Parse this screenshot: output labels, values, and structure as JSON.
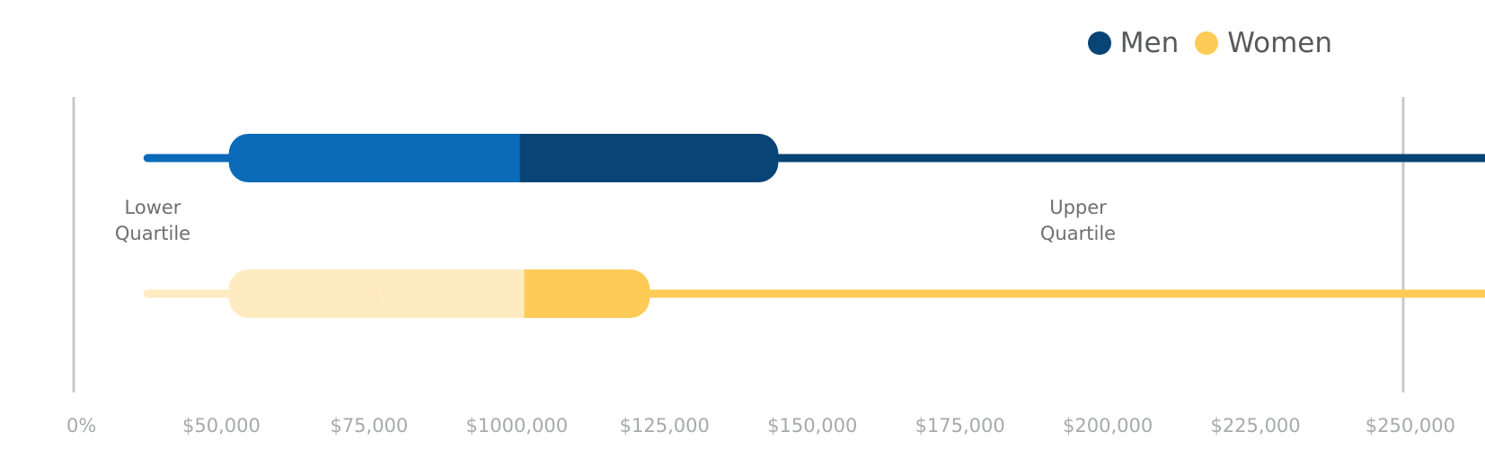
{
  "legend": {
    "men": "Men",
    "women": "Women"
  },
  "annotations": {
    "lower_quartile": "Lower\nQuartile",
    "upper_quartile": "Upper\nQuartile"
  },
  "chart_data": {
    "type": "box",
    "categories": [
      "Men",
      "Women"
    ],
    "x_tick_labels": [
      "0%",
      "$50,000",
      "$75,000",
      "$1000,000",
      "$125,000",
      "$150,000",
      "$175,000",
      "$200,000",
      "$225,000",
      "$250,000"
    ],
    "series": [
      {
        "name": "Men",
        "whisker_low": 0.5,
        "q1": 1.05,
        "median": 3.02,
        "q3": 4.77,
        "whisker_high": 9.95,
        "color_light": "#0b6bb8",
        "color_dark": "#084475"
      },
      {
        "name": "Women",
        "whisker_low": 0.5,
        "q1": 1.05,
        "median": 3.05,
        "q3": 3.9,
        "whisker_high": 9.97,
        "color_light": "#feebc2",
        "color_dark": "#fecb57"
      }
    ],
    "colors": {
      "men": "#084475",
      "women": "#fecb57",
      "axis": "#c7c8ca"
    }
  }
}
